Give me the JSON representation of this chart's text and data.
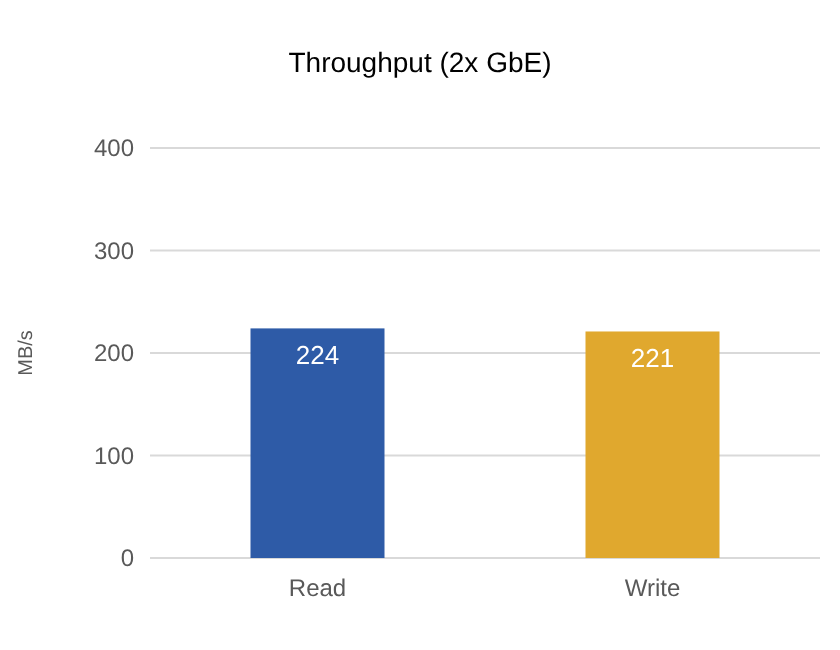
{
  "chart_data": {
    "type": "bar",
    "title": "Throughput (2x GbE)",
    "ylabel": "MB/s",
    "categories": [
      "Read",
      "Write"
    ],
    "values": [
      224,
      221
    ],
    "colors": [
      "#2e5ba7",
      "#e0a82e"
    ],
    "ylim": [
      0,
      400
    ],
    "yticks": [
      0,
      100,
      200,
      300,
      400
    ],
    "grid": "y",
    "data_labels": true
  }
}
